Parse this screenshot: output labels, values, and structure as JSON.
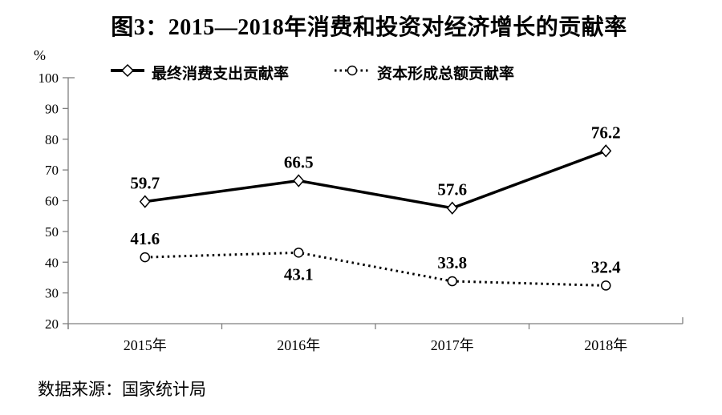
{
  "title": "图3：2015—2018年消费和投资对经济增长的贡献率",
  "y_axis_unit": "%",
  "source": "数据来源：国家统计局",
  "colors": {
    "line": "#000000",
    "axis": "#7f7f7f",
    "text": "#000000",
    "background": "#ffffff"
  },
  "chart_data": {
    "type": "line",
    "title": "图3：2015—2018年消费和投资对经济增长的贡献率",
    "categories": [
      "2015年",
      "2016年",
      "2017年",
      "2018年"
    ],
    "series": [
      {
        "name": "最终消费支出贡献率",
        "style": "solid",
        "marker": "diamond",
        "values": [
          59.7,
          66.5,
          57.6,
          76.2
        ],
        "label_side": [
          "above",
          "above",
          "above",
          "above"
        ]
      },
      {
        "name": "资本形成总额贡献率",
        "style": "dotted",
        "marker": "circle",
        "values": [
          41.6,
          43.1,
          33.8,
          32.4
        ],
        "label_side": [
          "above",
          "below",
          "above",
          "above"
        ]
      }
    ],
    "xlabel": "",
    "ylabel": "%",
    "ylim": [
      20,
      100
    ],
    "ytick_step": 10,
    "yticks": [
      20,
      30,
      40,
      50,
      60,
      70,
      80,
      90,
      100
    ],
    "grid": false,
    "legend_position": "top"
  }
}
